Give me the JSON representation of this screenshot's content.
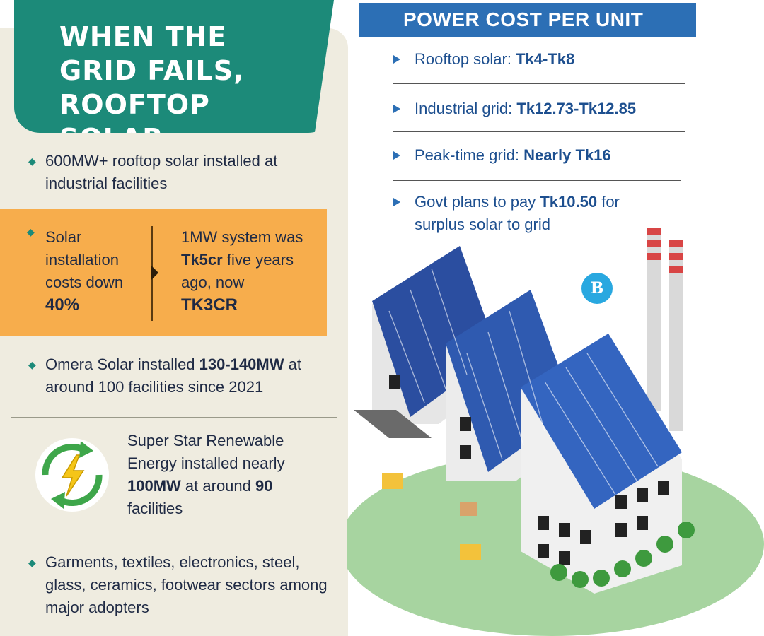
{
  "title": "WHEN THE GRID FAILS, ROOFTOP SOLAR DELIVERS",
  "left": {
    "bullet1": {
      "text": "600MW+ rooftop solar installed at industrial facilities"
    },
    "orange": {
      "left_text": "Solar installation costs down",
      "left_value": "40%",
      "right_text_pre": "1MW system was",
      "right_highlight": "Tk5cr",
      "right_text_post": "five years ago, now",
      "right_value": "TK3CR"
    },
    "bullet2": {
      "pre": "Omera Solar installed",
      "highlight": "130-140MW",
      "post": "at around 100 facilities since 2021"
    },
    "star": {
      "pre": "Super Star Renewable Energy installed nearly",
      "highlight1": "100MW",
      "mid": "at around",
      "highlight2": "90",
      "post": "facilities"
    },
    "bullet3": {
      "text": "Garments, textiles, electronics, steel, glass, ceramics, footwear sectors among major adopters"
    }
  },
  "right": {
    "header": "POWER COST PER UNIT",
    "items": [
      {
        "label": "Rooftop solar:",
        "value": "Tk4-Tk8"
      },
      {
        "label": "Industrial grid:",
        "value": "Tk12.73-Tk12.85"
      },
      {
        "label": "Peak-time grid:",
        "value": "Nearly Tk16"
      },
      {
        "label": "Govt plans to pay",
        "value": "Tk10.50",
        "post": "for surplus solar to grid"
      }
    ],
    "logo": "B"
  },
  "colors": {
    "teal": "#1c8a79",
    "orange": "#f7ad4c",
    "blue": "#2c6fb5",
    "panel": "#efece0"
  }
}
